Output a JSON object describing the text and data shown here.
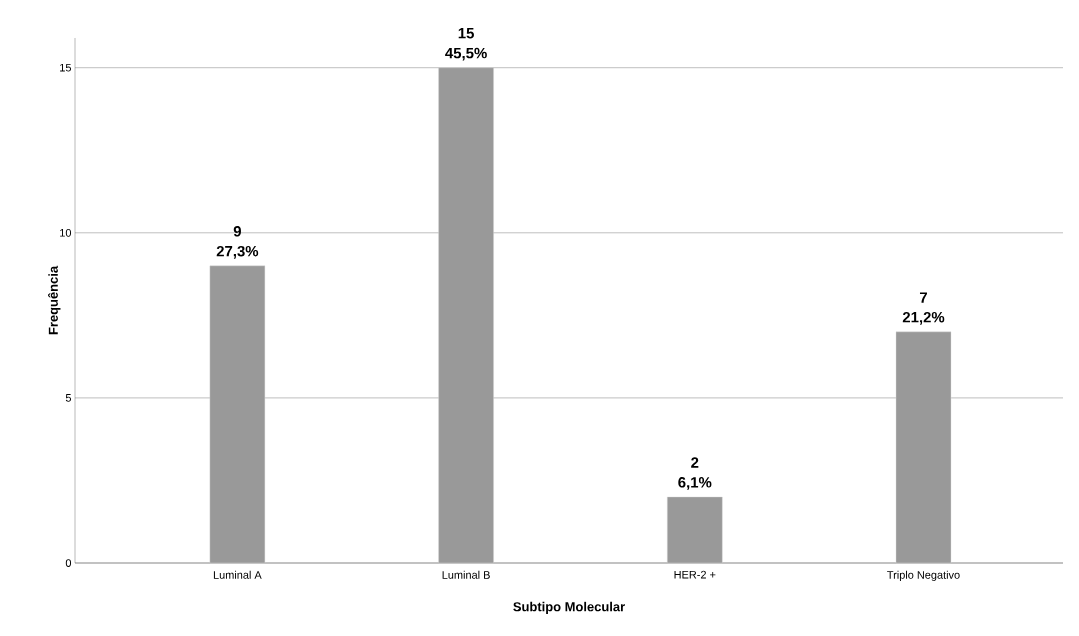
{
  "chart_data": {
    "type": "bar",
    "xlabel": "Subtipo Molecular",
    "ylabel": "Frequência",
    "categories": [
      "Luminal A",
      "Luminal B",
      "HER-2 +",
      "Triplo Negativo"
    ],
    "values": [
      9,
      15,
      2,
      7
    ],
    "value_labels": [
      "9",
      "15",
      "2",
      "7"
    ],
    "annotations": [
      {
        "text": "27,3%",
        "x": "Luminal A",
        "y": 9
      },
      {
        "text": "45,5%",
        "x": "Luminal B",
        "y": 15
      },
      {
        "text": "6,1%",
        "x": "HER-2 +",
        "y": 2
      },
      {
        "text": "21,2%",
        "x": "Triplo Negativo",
        "y": 7
      }
    ],
    "color": "#999999",
    "ylim": [
      0,
      15.9
    ],
    "yticks": [
      0,
      5,
      10,
      15
    ],
    "grid": "y"
  }
}
